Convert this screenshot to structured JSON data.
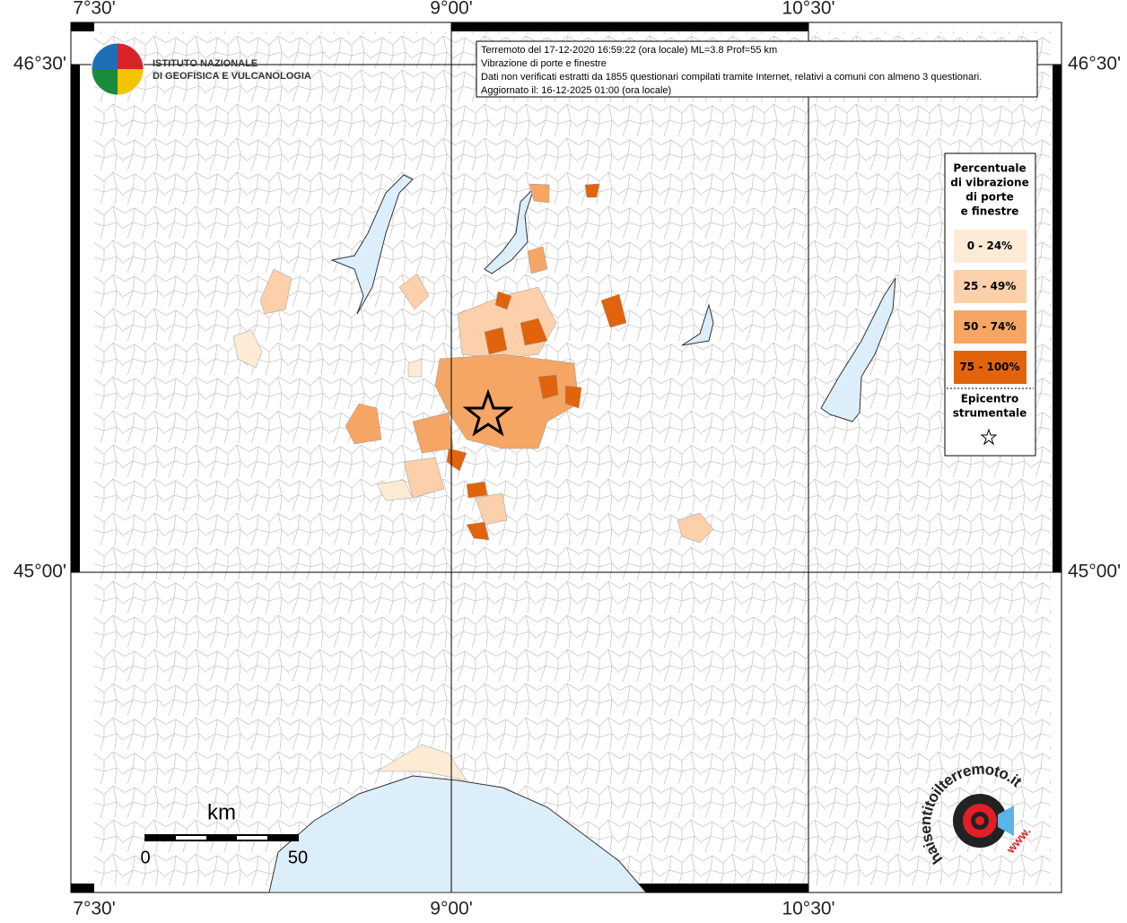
{
  "map": {
    "longitude_labels": [
      "7°30'",
      "9°00'",
      "10°30'"
    ],
    "latitude_labels": [
      "46°30'",
      "45°00'"
    ],
    "institute": [
      "ISTITUTO NAZIONALE",
      "DI GEOFISICA E VULCANOLOGIA"
    ],
    "info": [
      "Terremoto del 17-12-2020 16:59:22 (ora locale) ML=3.8 Prof=55 km",
      "Vibrazione di porte e finestre",
      "Dati non verificati estratti da 1855 questionari compilati tramite Internet, relativi a comuni con almeno 3 questionari.",
      "Aggiornato il: 16-12-2025 01:00 (ora locale)"
    ],
    "legend": {
      "title": [
        "Percentuale",
        "di vibrazione",
        "di porte",
        "e finestre"
      ],
      "items": [
        {
          "label": "0 - 24%",
          "color": "#fdebd6"
        },
        {
          "label": "25 - 49%",
          "color": "#fbd0aa"
        },
        {
          "label": "50 - 74%",
          "color": "#f6a664"
        },
        {
          "label": "75 - 100%",
          "color": "#e1640c"
        }
      ],
      "epicenter": [
        "Epicentro",
        "strumentale"
      ]
    },
    "scale": {
      "unit": "km",
      "labels": [
        "0",
        "50"
      ]
    },
    "site_logo": {
      "text": "haisentitoilterremoto.it",
      "www": "www."
    }
  }
}
